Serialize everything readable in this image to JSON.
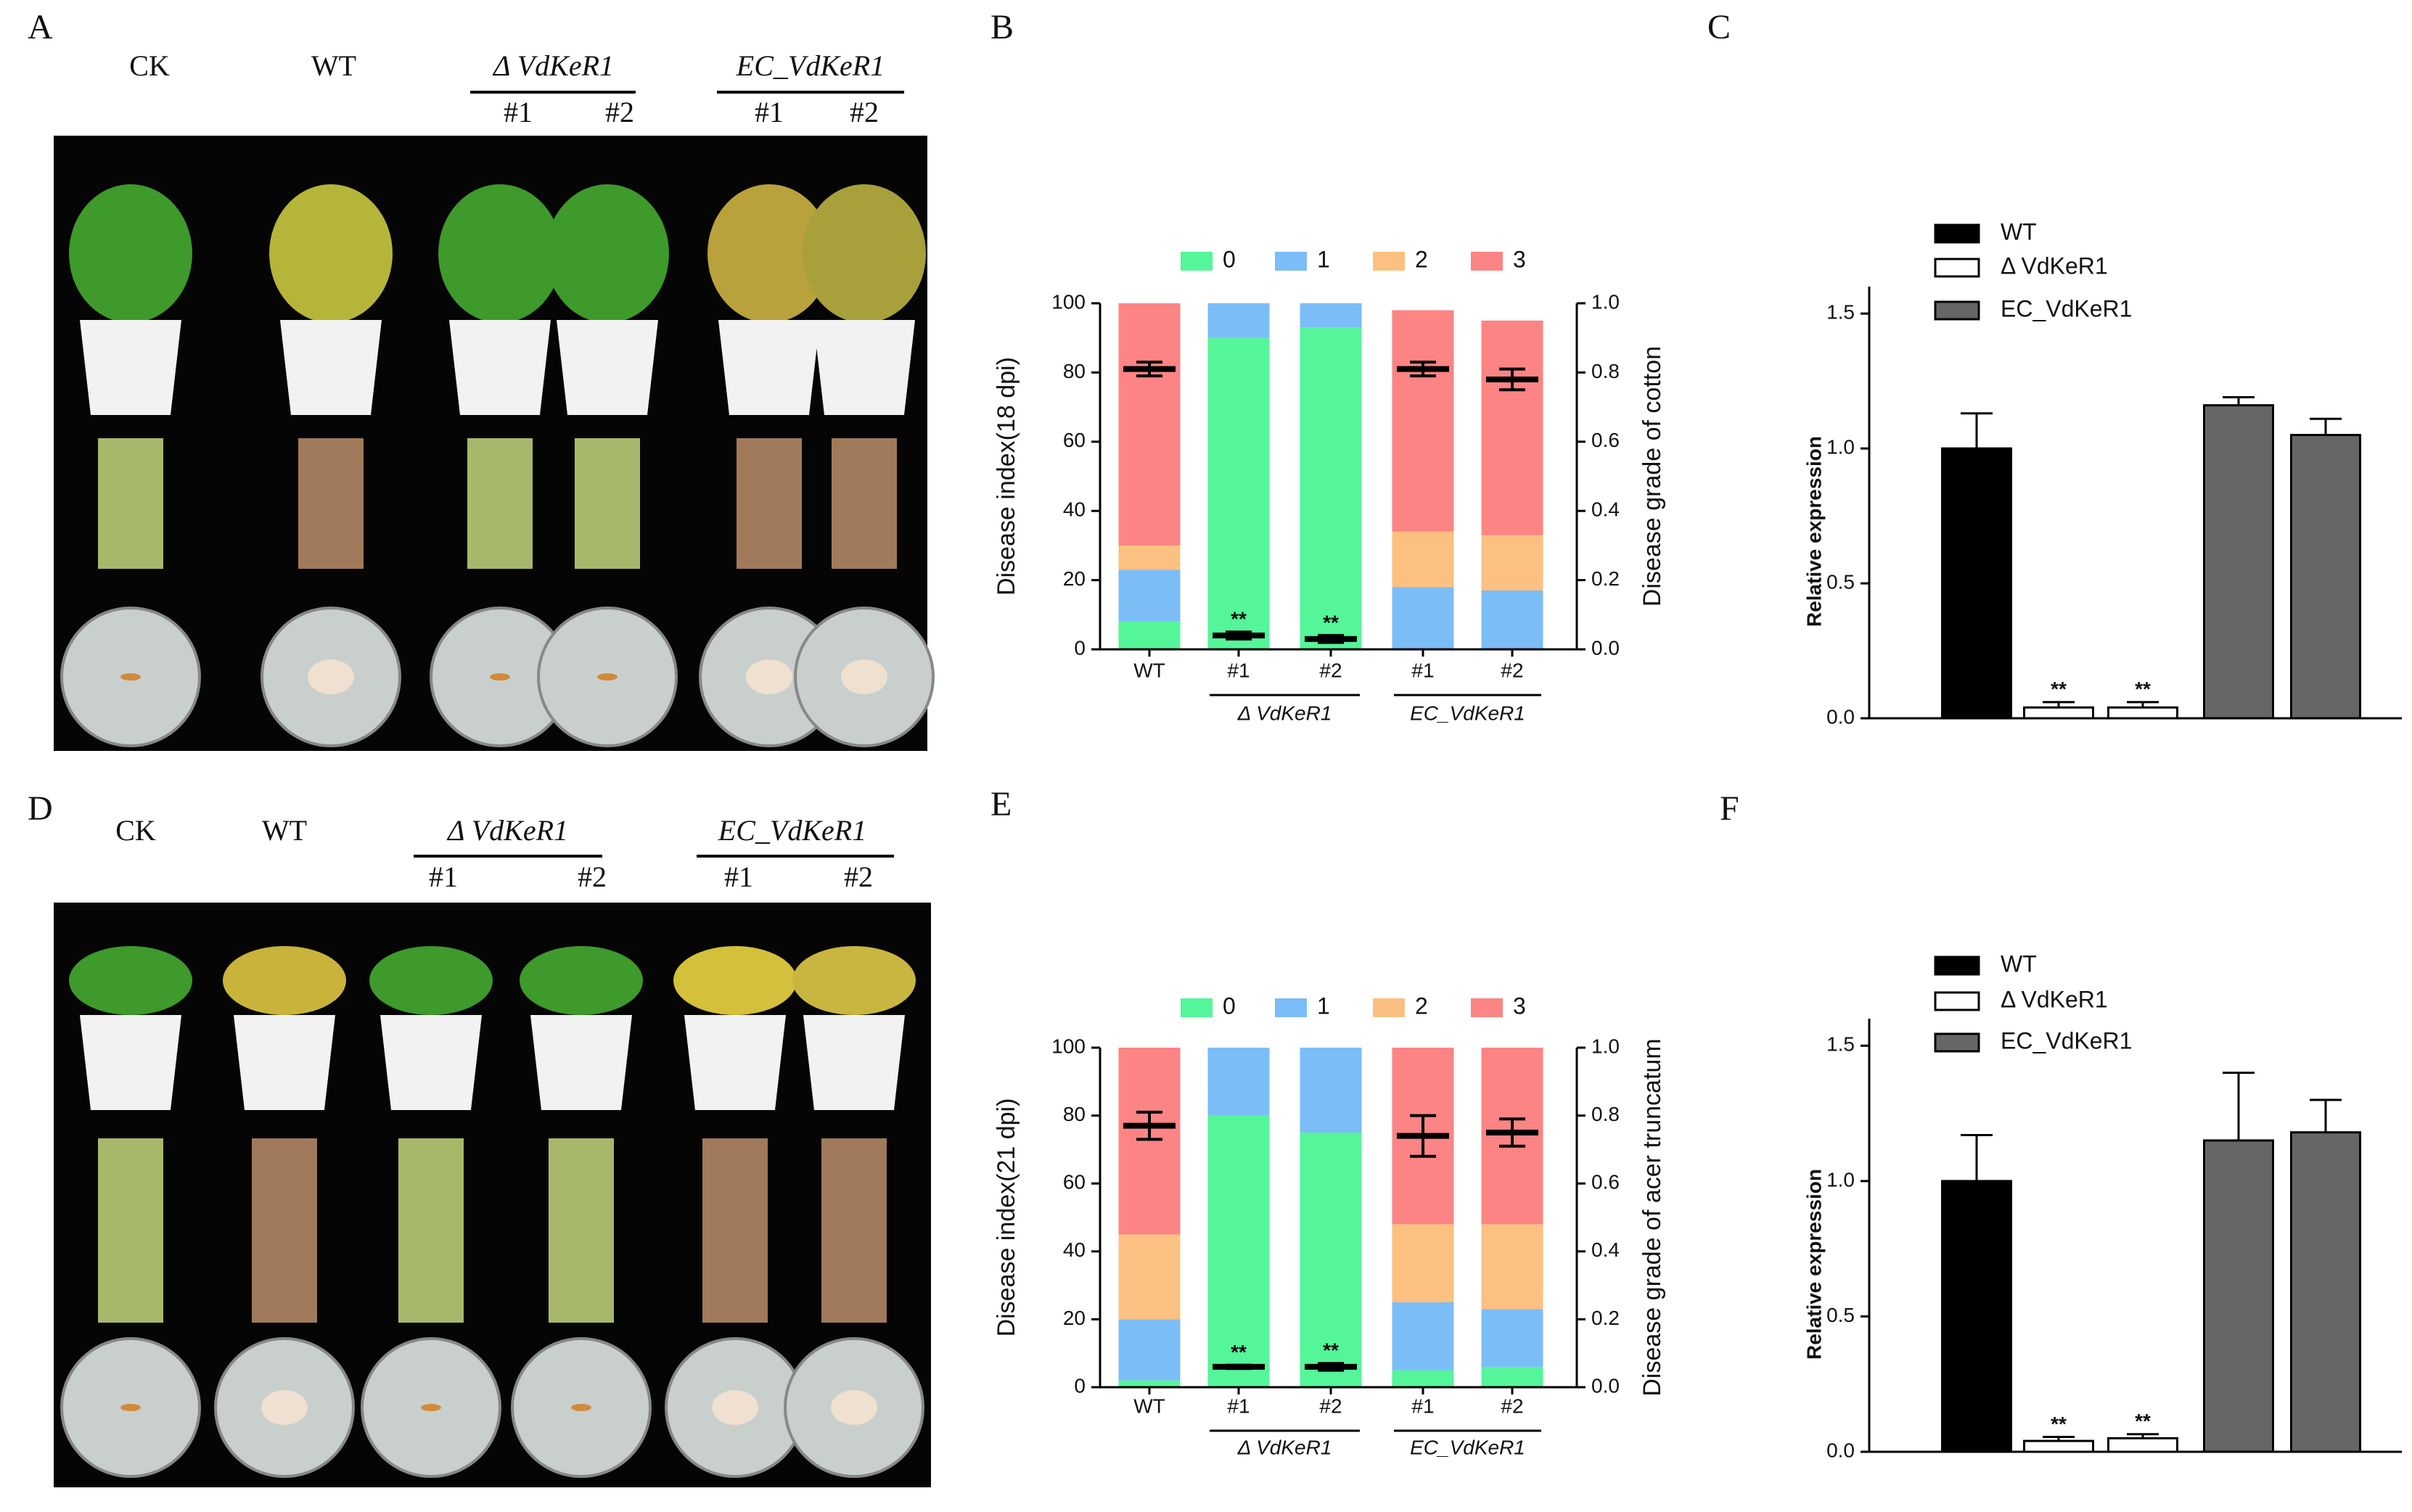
{
  "chart_data": [
    {
      "type": "stacked_bar_dual",
      "panel_label": "B",
      "categories": [
        "WT",
        "#1",
        "#2",
        "#1",
        "#2"
      ],
      "groups": [
        {
          "label": "Δ VdKeR1"
        },
        {
          "label": "EC_VdKeR1"
        }
      ],
      "series": [
        {
          "name": "0",
          "color": "#55f59a",
          "values": [
            8,
            90,
            93,
            0,
            0
          ]
        },
        {
          "name": "1",
          "color": "#7bbdf7",
          "values": [
            15,
            10,
            7,
            18,
            17
          ]
        },
        {
          "name": "2",
          "color": "#fcc081",
          "values": [
            7,
            0,
            0,
            16,
            16
          ]
        },
        {
          "name": "3",
          "color": "#fc8484",
          "values": [
            70,
            0,
            0,
            64,
            62
          ]
        }
      ],
      "grade": {
        "axis": "y2",
        "values": [
          0.81,
          0.04,
          0.03,
          0.81,
          0.78
        ],
        "errors": [
          0.02,
          0.01,
          0.01,
          0.02,
          0.03
        ]
      },
      "significance": [
        null,
        "**",
        "**",
        null,
        null
      ],
      "ylabel": "Disease index(18 dpi)",
      "y2label": "Disease grade of cotton",
      "ylim": [
        0,
        100
      ],
      "yticks": [
        0,
        20,
        40,
        60,
        80,
        100
      ],
      "y2lim": [
        0,
        1
      ],
      "y2ticks": [
        {
          "value": 0,
          "label": "0.0"
        },
        0.2,
        0.4,
        0.6,
        0.8,
        {
          "value": 1,
          "label": "1.0"
        }
      ],
      "legend": "top"
    },
    {
      "type": "bar",
      "panel_label": "C",
      "series": [
        {
          "name": "WT",
          "color": "#000000",
          "values": [
            1.0
          ],
          "errors": [
            0.13
          ],
          "significance": [
            null
          ]
        },
        {
          "name": "Δ VdKeR1",
          "color": "#ffffff",
          "values": [
            0.04,
            0.04
          ],
          "errors": [
            0.02,
            0.02
          ],
          "significance": [
            "**",
            "**"
          ]
        },
        {
          "name": "EC_VdKeR1",
          "color": "#666666",
          "values": [
            1.16,
            1.05
          ],
          "errors": [
            0.03,
            0.06
          ],
          "significance": [
            null,
            null
          ]
        }
      ],
      "ylabel": "Relative expression",
      "ylim": [
        0,
        1.6
      ],
      "yticks": [
        {
          "value": 0,
          "label": "0.0"
        },
        0.5,
        {
          "value": 1,
          "label": "1.0"
        },
        1.5
      ],
      "legend": "top-left"
    },
    {
      "type": "stacked_bar_dual",
      "panel_label": "E",
      "categories": [
        "WT",
        "#1",
        "#2",
        "#1",
        "#2"
      ],
      "groups": [
        {
          "label": "Δ VdKeR1"
        },
        {
          "label": "EC_VdKeR1"
        }
      ],
      "series": [
        {
          "name": "0",
          "color": "#55f59a",
          "values": [
            2,
            80,
            75,
            5,
            6
          ]
        },
        {
          "name": "1",
          "color": "#7bbdf7",
          "values": [
            18,
            20,
            25,
            20,
            17
          ]
        },
        {
          "name": "2",
          "color": "#fcc081",
          "values": [
            25,
            0,
            0,
            23,
            25
          ]
        },
        {
          "name": "3",
          "color": "#fc8484",
          "values": [
            55,
            0,
            0,
            52,
            52
          ]
        }
      ],
      "grade": {
        "axis": "y2",
        "values": [
          0.77,
          0.06,
          0.06,
          0.74,
          0.75
        ],
        "errors": [
          0.04,
          0.005,
          0.01,
          0.06,
          0.04
        ]
      },
      "significance": [
        null,
        "**",
        "**",
        null,
        null
      ],
      "ylabel": "Disease index(21 dpi)",
      "y2label": "Disease grade of acer truncatum",
      "ylim": [
        0,
        100
      ],
      "yticks": [
        0,
        20,
        40,
        60,
        80,
        100
      ],
      "y2lim": [
        0,
        1
      ],
      "y2ticks": [
        {
          "value": 0,
          "label": "0.0"
        },
        0.2,
        0.4,
        0.6,
        0.8,
        {
          "value": 1,
          "label": "1.0"
        }
      ],
      "legend": "top"
    },
    {
      "type": "bar",
      "panel_label": "F",
      "series": [
        {
          "name": "WT",
          "color": "#000000",
          "values": [
            1.0
          ],
          "errors": [
            0.17
          ],
          "significance": [
            null
          ]
        },
        {
          "name": "Δ VdKeR1",
          "color": "#ffffff",
          "values": [
            0.04,
            0.05
          ],
          "errors": [
            0.015,
            0.015
          ],
          "significance": [
            "**",
            "**"
          ]
        },
        {
          "name": "EC_VdKeR1",
          "color": "#666666",
          "values": [
            1.15,
            1.18
          ],
          "errors": [
            0.25,
            0.12
          ],
          "significance": [
            null,
            null
          ]
        }
      ],
      "ylabel": "Relative expression",
      "ylim": [
        0,
        1.6
      ],
      "yticks": [
        {
          "value": 0,
          "label": "0.0"
        },
        0.5,
        {
          "value": 1,
          "label": "1.0"
        },
        1.5
      ],
      "legend": "top-left"
    }
  ],
  "photo_panels": [
    {
      "letter": "A",
      "columns": [
        {
          "label": "CK"
        },
        {
          "label": "WT"
        }
      ],
      "groups": [
        {
          "label": "Δ VdKeR1",
          "members": [
            "#1",
            "#2"
          ]
        },
        {
          "label": "EC_VdKeR1",
          "members": [
            "#1",
            "#2"
          ]
        }
      ]
    },
    {
      "letter": "D",
      "columns": [
        {
          "label": "CK"
        },
        {
          "label": "WT"
        }
      ],
      "groups": [
        {
          "label": "Δ VdKeR1",
          "members": [
            "#1",
            "#2"
          ]
        },
        {
          "label": "EC_VdKeR1",
          "members": [
            "#1",
            "#2"
          ]
        }
      ]
    }
  ]
}
